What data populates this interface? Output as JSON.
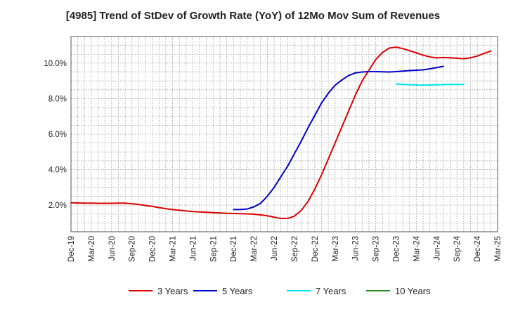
{
  "chart_data": {
    "type": "line",
    "title": "[4985]  Trend of StDev of Growth Rate (YoY) of 12Mo Mov Sum of Revenues",
    "xlabel": "",
    "ylabel": "",
    "ylim": [
      0.5,
      11.5
    ],
    "ytick_values": [
      2.0,
      4.0,
      6.0,
      8.0,
      10.0
    ],
    "ytick_labels": [
      "2.0%",
      "4.0%",
      "6.0%",
      "8.0%",
      "10.0%"
    ],
    "xtick_labels": [
      "Dec-19",
      "Mar-20",
      "Jun-20",
      "Sep-20",
      "Dec-20",
      "Mar-21",
      "Jun-21",
      "Sep-21",
      "Dec-21",
      "Mar-22",
      "Jun-22",
      "Sep-22",
      "Dec-22",
      "Mar-23",
      "Jun-23",
      "Sep-23",
      "Dec-23",
      "Mar-24",
      "Jun-24",
      "Sep-24",
      "Dec-24",
      "Mar-25"
    ],
    "x_start": "Dec-19",
    "x_month_count": 63,
    "grid": true,
    "legend_position": "bottom",
    "series": [
      {
        "name": "3 Years",
        "color": "#dd0000",
        "start_month": 0,
        "values": [
          2.13,
          2.12,
          2.11,
          2.11,
          2.1,
          2.1,
          2.1,
          2.11,
          2.11,
          2.08,
          2.04,
          1.98,
          1.93,
          1.86,
          1.8,
          1.75,
          1.71,
          1.67,
          1.64,
          1.62,
          1.6,
          1.58,
          1.56,
          1.54,
          1.53,
          1.52,
          1.51,
          1.49,
          1.45,
          1.4,
          1.32,
          1.25,
          1.25,
          1.38,
          1.7,
          2.2,
          2.9,
          3.7,
          4.6,
          5.5,
          6.4,
          7.3,
          8.2,
          9.0,
          9.6,
          10.2,
          10.6,
          10.85,
          10.9,
          10.82,
          10.7,
          10.58,
          10.45,
          10.35,
          10.3,
          10.32,
          10.3,
          10.28,
          10.25,
          10.3,
          10.4,
          10.55,
          10.68
        ]
      },
      {
        "name": "5 Years",
        "color": "#0000cc",
        "start_month": 24,
        "values": [
          1.75,
          1.75,
          1.78,
          1.9,
          2.1,
          2.5,
          3.0,
          3.6,
          4.2,
          4.9,
          5.6,
          6.35,
          7.05,
          7.75,
          8.3,
          8.75,
          9.05,
          9.3,
          9.45,
          9.5,
          9.52,
          9.52,
          9.51,
          9.5,
          9.52,
          9.55,
          9.58,
          9.6,
          9.62,
          9.68,
          9.75,
          9.82
        ]
      },
      {
        "name": "7 Years",
        "color": "#00e5ee",
        "start_month": 48,
        "values": [
          8.82,
          8.8,
          8.78,
          8.77,
          8.76,
          8.77,
          8.78,
          8.79,
          8.8,
          8.8,
          8.8
        ]
      },
      {
        "name": "10 Years",
        "color": "#228b22",
        "start_month": 0,
        "values": []
      }
    ]
  }
}
